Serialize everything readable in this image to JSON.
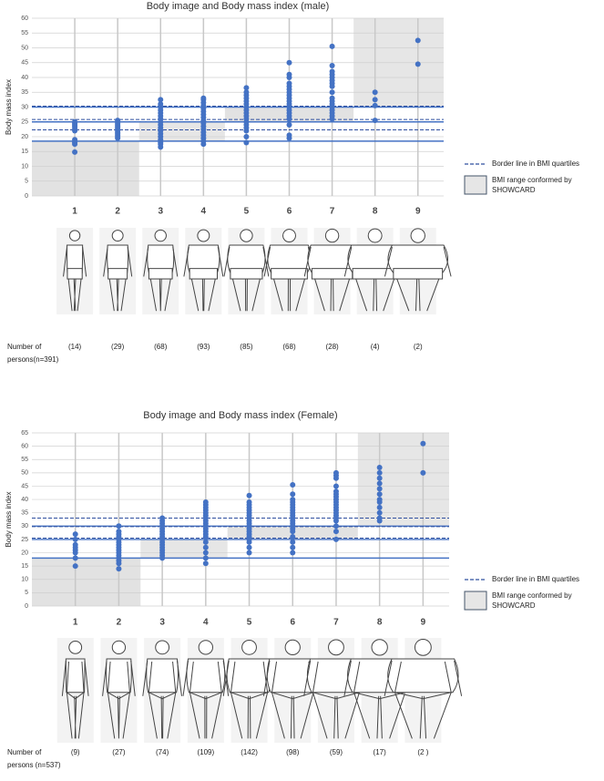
{
  "chart_data": [
    {
      "type": "strip",
      "title": "Body image and Body mass index (male)",
      "y_label": "Body mass index",
      "x": [
        1,
        2,
        3,
        4,
        5,
        6,
        7,
        8,
        9
      ],
      "xlim": [
        0,
        9.6
      ],
      "ylim": [
        0,
        60
      ],
      "yticks": [
        0,
        5,
        10,
        15,
        20,
        25,
        30,
        35,
        40,
        45,
        50,
        55,
        60
      ],
      "grid": true,
      "color": "#4472c4",
      "points": [
        [
          14.8,
          17.5,
          18,
          18.3,
          19,
          22,
          22.8,
          23.5,
          24,
          24.5,
          25
        ],
        [
          19.5,
          20,
          20.5,
          21,
          21.5,
          22,
          22.5,
          23,
          23.5,
          24,
          24.5,
          25,
          25.5
        ],
        [
          16.5,
          17.5,
          18,
          19,
          20,
          21,
          22,
          23,
          24,
          25,
          26,
          27,
          28,
          29,
          30,
          31,
          32.5
        ],
        [
          17.5,
          18.5,
          19.5,
          20.5,
          21.5,
          22.5,
          23.5,
          24.5,
          25.5,
          26.5,
          27.5,
          28.5,
          29.5,
          30.5,
          31.5,
          32.5,
          33
        ],
        [
          18,
          20,
          22,
          23,
          24,
          25,
          26,
          27,
          28,
          29,
          30,
          31,
          32,
          33,
          34,
          35,
          36.5
        ],
        [
          19.5,
          20.5,
          24,
          26,
          27,
          28,
          29,
          30,
          31,
          32,
          33,
          34,
          35,
          36,
          37,
          38,
          40,
          41,
          45
        ],
        [
          26,
          27,
          28,
          29,
          30,
          31,
          32,
          33,
          35,
          37,
          38,
          39,
          40,
          41,
          42,
          44,
          50.5
        ],
        [
          25.5,
          30.5,
          32.5,
          35
        ],
        [
          44.5,
          52.5
        ]
      ],
      "quartile_lines": [
        22.3,
        25.8,
        30.3
      ],
      "quartile_color": "#2f4f9f",
      "showcard_lines": [
        18.5,
        25,
        30
      ],
      "showcard_color": "#4472c4",
      "showcard_ranges": [
        {
          "x": [
            0,
            2.5
          ],
          "y": [
            0,
            18.5
          ]
        },
        {
          "x": [
            2.5,
            4.5
          ],
          "y": [
            18.5,
            25
          ]
        },
        {
          "x": [
            4.5,
            7.5
          ],
          "y": [
            25,
            30
          ]
        },
        {
          "x": [
            7.5,
            9.6
          ],
          "y": [
            30,
            60
          ]
        }
      ],
      "legend": {
        "dashed": "Border line in BMI quartiles",
        "range": [
          "BMI range conformed by",
          "SHOWCARD"
        ]
      },
      "sex": "male",
      "counts": [
        "(14)",
        "(29)",
        "(68)",
        "(93)",
        "(85)",
        "(68)",
        "(28)",
        "(4)",
        "(2)"
      ],
      "count_label": [
        "Number of",
        "persons(n=391)"
      ]
    },
    {
      "type": "strip",
      "title": "Body image and Body mass index (Female)",
      "y_label": "Body mass index",
      "x": [
        1,
        2,
        3,
        4,
        5,
        6,
        7,
        8,
        9
      ],
      "xlim": [
        0,
        9.6
      ],
      "ylim": [
        0,
        65
      ],
      "yticks": [
        0,
        5,
        10,
        15,
        20,
        25,
        30,
        35,
        40,
        45,
        50,
        55,
        60,
        65
      ],
      "grid": true,
      "color": "#4472c4",
      "points": [
        [
          15,
          18,
          20,
          21,
          22,
          23,
          25,
          27
        ],
        [
          14,
          16,
          17,
          18,
          19,
          20,
          21,
          22,
          23,
          24,
          25,
          26,
          27,
          28,
          30
        ],
        [
          18,
          19,
          20,
          21,
          22,
          23,
          24,
          25,
          26,
          27,
          28,
          29,
          30,
          31,
          32,
          33
        ],
        [
          16,
          18,
          20,
          22,
          24,
          26,
          27,
          28,
          29,
          30,
          31,
          32,
          33,
          34,
          35,
          36,
          37,
          38,
          39
        ],
        [
          20,
          22,
          24,
          25,
          26,
          27,
          28,
          29,
          30,
          31,
          32,
          33,
          34,
          35,
          36,
          37,
          38,
          39,
          41.5
        ],
        [
          20,
          22,
          24,
          26,
          28,
          29,
          30,
          31,
          32,
          33,
          34,
          35,
          36,
          37,
          38,
          39,
          40,
          42,
          45.5
        ],
        [
          25,
          28,
          30,
          32,
          33,
          34,
          35,
          36,
          37,
          38,
          39,
          40,
          41,
          42,
          43,
          45,
          48,
          49,
          50
        ],
        [
          32,
          33,
          35,
          37,
          39,
          40,
          42,
          44,
          46,
          48,
          50,
          52
        ],
        [
          50,
          61
        ]
      ],
      "quartile_lines": [
        25.5,
        29.8,
        33
      ],
      "quartile_color": "#2f4f9f",
      "showcard_lines": [
        18,
        25,
        30
      ],
      "showcard_color": "#4472c4",
      "showcard_ranges": [
        {
          "x": [
            0,
            2.5
          ],
          "y": [
            0,
            18
          ]
        },
        {
          "x": [
            2.5,
            4.5
          ],
          "y": [
            18,
            25
          ]
        },
        {
          "x": [
            4.5,
            7.5
          ],
          "y": [
            25,
            30
          ]
        },
        {
          "x": [
            7.5,
            9.6
          ],
          "y": [
            30,
            65
          ]
        }
      ],
      "legend": {
        "dashed": "Border line in BMI quartiles",
        "range": [
          "BMI range conformed by",
          "SHOWCARD"
        ]
      },
      "sex": "female",
      "counts": [
        "(9)",
        "(27)",
        "(74)",
        "(109)",
        "(142)",
        "(98)",
        "(59)",
        "(17)",
        "(2 )"
      ],
      "count_label": [
        "Number of",
        "persons (n=537)"
      ]
    }
  ]
}
